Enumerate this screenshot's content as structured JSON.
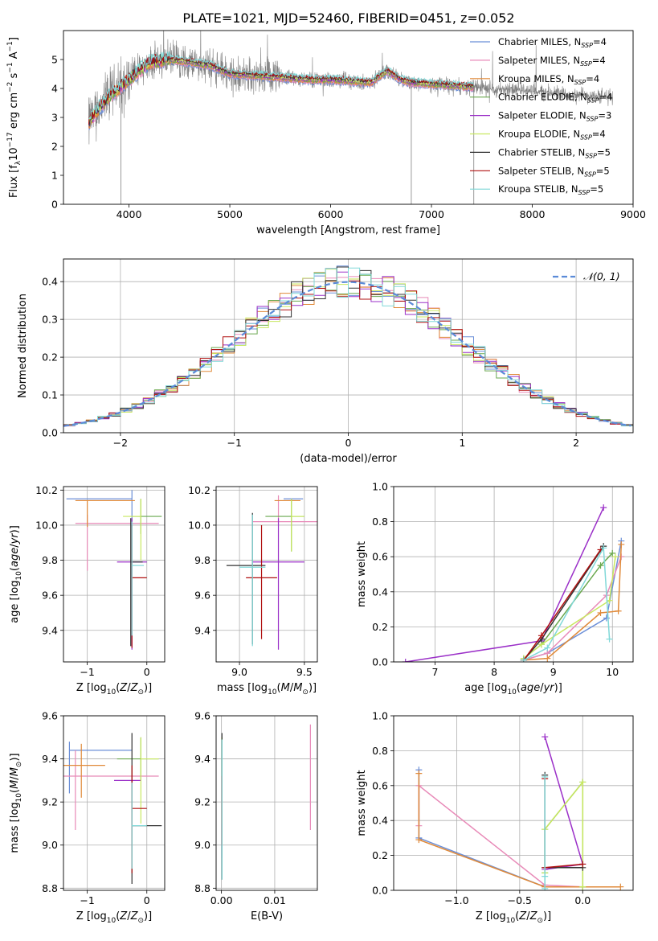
{
  "figure": {
    "title": "PLATE=1021, MJD=52460, FIBERID=0451, z=0.052"
  },
  "colors": {
    "Chabrier MILES": "#6b8fd8",
    "Salpeter MILES": "#e88ab8",
    "Kroupa MILES": "#e08a3a",
    "Chabrier ELODIE": "#6aa84f",
    "Salpeter ELODIE": "#9b30c8",
    "Kroupa ELODIE": "#c8e860",
    "Chabrier STELIB": "#333333",
    "Salpeter STELIB": "#b01010",
    "Kroupa STELIB": "#80d8d8",
    "observed": "#808080",
    "normal": "#5b8bd8"
  },
  "chart_data": [
    {
      "id": "spectrum",
      "type": "line",
      "xlabel": "wavelength [Angstrom, rest frame]",
      "ylabel": "Flux [f_λ 10^-17 erg cm^-2 s^-1 A^-1]",
      "xlim": [
        3350,
        9000
      ],
      "ylim": [
        0,
        6
      ],
      "xticks": [
        4000,
        5000,
        6000,
        7000,
        8000,
        9000
      ],
      "yticks": [
        0,
        1,
        2,
        3,
        4,
        5
      ],
      "legend_position": "top-right",
      "legend": [
        {
          "series": "Chabrier MILES",
          "text": "Chabrier MILES, N",
          "sub": "SSP",
          "tail": "=4"
        },
        {
          "series": "Salpeter MILES",
          "text": "Salpeter MILES, N",
          "sub": "SSP",
          "tail": "=4"
        },
        {
          "series": "Kroupa MILES",
          "text": "Kroupa MILES, N",
          "sub": "SSP",
          "tail": "=4"
        },
        {
          "series": "Chabrier ELODIE",
          "text": "Chabrier ELODIE, N",
          "sub": "SSP",
          "tail": "=4"
        },
        {
          "series": "Salpeter ELODIE",
          "text": "Salpeter ELODIE, N",
          "sub": "SSP",
          "tail": "=3"
        },
        {
          "series": "Kroupa ELODIE",
          "text": "Kroupa ELODIE, N",
          "sub": "SSP",
          "tail": "=4"
        },
        {
          "series": "Chabrier STELIB",
          "text": "Chabrier STELIB, N",
          "sub": "SSP",
          "tail": "=5"
        },
        {
          "series": "Salpeter STELIB",
          "text": "Salpeter STELIB, N",
          "sub": "SSP",
          "tail": "=5"
        },
        {
          "series": "Kroupa STELIB",
          "text": "Kroupa STELIB, N",
          "sub": "SSP",
          "tail": "=5"
        }
      ],
      "continuum": {
        "x": [
          3600,
          3700,
          3800,
          3900,
          4000,
          4100,
          4200,
          4400,
          4600,
          4800,
          5000,
          5200,
          5400,
          5600,
          5800,
          6000,
          6200,
          6400,
          6560,
          6700,
          6800,
          7000,
          7200,
          7400,
          7600,
          7800,
          8000,
          8200,
          8400,
          8600,
          8800
        ],
        "y": [
          2.8,
          3.3,
          3.7,
          4.0,
          4.3,
          4.6,
          4.9,
          5.0,
          4.9,
          4.8,
          4.5,
          4.45,
          4.4,
          4.35,
          4.3,
          4.3,
          4.25,
          4.2,
          4.6,
          4.3,
          4.2,
          4.15,
          4.1,
          4.05,
          4.0,
          3.95,
          3.9,
          3.85,
          3.8,
          3.75,
          3.7
        ]
      },
      "models_end_x": 7420
    },
    {
      "id": "residuals",
      "type": "histogram",
      "xlabel": "(data-model)/error",
      "ylabel": "Normed distribution",
      "xlim": [
        -2.5,
        2.5
      ],
      "ylim": [
        0,
        0.46
      ],
      "xticks": [
        -2,
        -1,
        0,
        1,
        2
      ],
      "yticks": [
        0,
        0.1,
        0.2,
        0.3,
        0.4
      ],
      "grid": true,
      "bin_width": 0.1,
      "bin_start": -2.5,
      "reference_curve": {
        "label": "𝒩(0, 1)",
        "mean": 0,
        "sigma": 1,
        "style": "dashed"
      },
      "legend_position": "top-right"
    },
    {
      "id": "age-vs-Z",
      "type": "errorbar",
      "xlabel": "Z [log10(Z/Z⊙)]",
      "ylabel": "age  [log10(age/yr)]",
      "xlim": [
        -1.4,
        0.3
      ],
      "ylim": [
        9.22,
        10.22
      ],
      "xticks": [
        -1,
        0
      ],
      "yticks": [
        9.4,
        9.6,
        9.8,
        10.0,
        10.2
      ],
      "grid": true,
      "points": [
        {
          "series": "Chabrier MILES",
          "x": -0.25,
          "y": 10.15,
          "xerr": [
            1.1,
            0.0
          ],
          "yerr": [
            0.17,
            0.05
          ]
        },
        {
          "series": "Salpeter MILES",
          "x": -1.0,
          "y": 10.01,
          "xerr": [
            0.2,
            1.2
          ],
          "yerr": [
            0.27,
            0.05
          ]
        },
        {
          "series": "Kroupa MILES",
          "x": -1.0,
          "y": 10.14,
          "xerr": [
            0.2,
            0.8
          ],
          "yerr": [
            0.15,
            0.0
          ]
        },
        {
          "series": "Chabrier ELODIE",
          "x": -0.1,
          "y": 10.05,
          "xerr": [
            0.15,
            0.35
          ],
          "yerr": [
            0.1,
            0.1
          ]
        },
        {
          "series": "Salpeter ELODIE",
          "x": -0.25,
          "y": 9.79,
          "xerr": [
            0.25,
            0.25
          ],
          "yerr": [
            0.5,
            0.25
          ]
        },
        {
          "series": "Kroupa ELODIE",
          "x": -0.1,
          "y": 10.05,
          "xerr": [
            0.3,
            0.0
          ],
          "yerr": [
            0.25,
            0.1
          ]
        },
        {
          "series": "Chabrier STELIB",
          "x": -0.27,
          "y": 9.79,
          "xerr": [
            0.0,
            0.2
          ],
          "yerr": [
            0.48,
            0.25
          ]
        },
        {
          "series": "Salpeter STELIB",
          "x": -0.25,
          "y": 9.7,
          "xerr": [
            0.0,
            0.25
          ],
          "yerr": [
            0.4,
            0.3
          ]
        },
        {
          "series": "Kroupa STELIB",
          "x": -0.25,
          "y": 9.77,
          "xerr": [
            0.0,
            0.2
          ],
          "yerr": [
            0.4,
            0.25
          ]
        }
      ]
    },
    {
      "id": "age-vs-mass",
      "type": "errorbar",
      "xlabel": "mass [log10(M/M⊙)]",
      "ylabel": "",
      "xlim": [
        8.82,
        9.6
      ],
      "ylim": [
        9.22,
        10.22
      ],
      "xticks": [
        9.0,
        9.5
      ],
      "yticks": [
        9.4,
        9.6,
        9.8,
        10.0,
        10.2
      ],
      "grid": true,
      "points": [
        {
          "series": "Chabrier MILES",
          "x": 9.44,
          "y": 10.15,
          "xerr": [
            0.1,
            0.05
          ],
          "yerr": [
            0.0,
            0.0
          ]
        },
        {
          "series": "Salpeter MILES",
          "x": 9.3,
          "y": 10.02,
          "xerr": [
            0.2,
            0.3
          ],
          "yerr": [
            0.0,
            0.15
          ]
        },
        {
          "series": "Kroupa MILES",
          "x": 9.37,
          "y": 10.14,
          "xerr": [
            0.1,
            0.1
          ],
          "yerr": [
            0.0,
            0.0
          ]
        },
        {
          "series": "Chabrier ELODIE",
          "x": 9.4,
          "y": 10.05,
          "xerr": [
            0.2,
            0.1
          ],
          "yerr": [
            0.2,
            0.1
          ]
        },
        {
          "series": "Salpeter ELODIE",
          "x": 9.3,
          "y": 9.79,
          "xerr": [
            0.2,
            0.2
          ],
          "yerr": [
            0.5,
            0.25
          ]
        },
        {
          "series": "Kroupa ELODIE",
          "x": 9.4,
          "y": 10.05,
          "xerr": [
            0.0,
            0.1
          ],
          "yerr": [
            0.2,
            0.1
          ]
        },
        {
          "series": "Chabrier STELIB",
          "x": 9.1,
          "y": 9.77,
          "xerr": [
            0.2,
            0.1
          ],
          "yerr": [
            0.45,
            0.3
          ]
        },
        {
          "series": "Salpeter STELIB",
          "x": 9.17,
          "y": 9.7,
          "xerr": [
            0.12,
            0.12
          ],
          "yerr": [
            0.35,
            0.3
          ]
        },
        {
          "series": "Kroupa STELIB",
          "x": 9.1,
          "y": 9.76,
          "xerr": [
            0.1,
            0.1
          ],
          "yerr": [
            0.45,
            0.3
          ]
        }
      ]
    },
    {
      "id": "weight-vs-age",
      "type": "line",
      "xlabel": "age  [log10(age/yr)]",
      "ylabel": "mass weight",
      "xlim": [
        6.3,
        10.35
      ],
      "ylim": [
        0,
        1.0
      ],
      "xticks": [
        7,
        8,
        9,
        10
      ],
      "yticks": [
        0.0,
        0.2,
        0.4,
        0.6,
        0.8,
        1.0
      ],
      "grid": true,
      "series": [
        {
          "name": "Chabrier MILES",
          "x": [
            8.5,
            8.9,
            9.9,
            10.15
          ],
          "y": [
            0.01,
            0.05,
            0.25,
            0.69
          ]
        },
        {
          "name": "Salpeter MILES",
          "x": [
            8.5,
            8.9,
            9.9,
            10.15
          ],
          "y": [
            0.01,
            0.05,
            0.38,
            0.6
          ]
        },
        {
          "name": "Kroupa MILES",
          "x": [
            8.5,
            8.9,
            9.8,
            10.1,
            10.15
          ],
          "y": [
            0.01,
            0.02,
            0.28,
            0.29,
            0.67
          ]
        },
        {
          "name": "Chabrier ELODIE",
          "x": [
            8.5,
            8.8,
            9.8,
            10.0
          ],
          "y": [
            0.02,
            0.1,
            0.55,
            0.62
          ]
        },
        {
          "name": "Salpeter ELODIE",
          "x": [
            6.5,
            8.8,
            9.85
          ],
          "y": [
            0.0,
            0.12,
            0.88
          ]
        },
        {
          "name": "Kroupa ELODIE",
          "x": [
            8.5,
            8.8,
            9.95,
            10.05
          ],
          "y": [
            0.02,
            0.1,
            0.35,
            0.6
          ]
        },
        {
          "name": "Chabrier STELIB",
          "x": [
            8.5,
            8.8,
            9.85
          ],
          "y": [
            0.01,
            0.13,
            0.66
          ]
        },
        {
          "name": "Salpeter STELIB",
          "x": [
            8.5,
            8.8,
            9.8
          ],
          "y": [
            0.01,
            0.15,
            0.64
          ]
        },
        {
          "name": "Kroupa STELIB",
          "x": [
            8.5,
            8.9,
            9.85,
            9.95
          ],
          "y": [
            0.01,
            0.08,
            0.65,
            0.13
          ]
        }
      ]
    },
    {
      "id": "mass-vs-Z",
      "type": "errorbar",
      "xlabel": "Z [log10(Z/Z⊙)]",
      "ylabel": "mass [log10(M/M⊙)]",
      "xlim": [
        -1.4,
        0.3
      ],
      "ylim": [
        8.79,
        9.6
      ],
      "xticks": [
        -1,
        0
      ],
      "yticks": [
        8.8,
        9.0,
        9.2,
        9.4,
        9.6
      ],
      "grid": true,
      "points": [
        {
          "series": "Chabrier MILES",
          "x": -1.3,
          "y": 9.44,
          "xerr": [
            0.0,
            1.05
          ],
          "yerr": [
            0.2,
            0.04
          ]
        },
        {
          "series": "Salpeter MILES",
          "x": -1.2,
          "y": 9.32,
          "xerr": [
            0.2,
            1.4
          ],
          "yerr": [
            0.25,
            0.12
          ]
        },
        {
          "series": "Kroupa MILES",
          "x": -1.1,
          "y": 9.37,
          "xerr": [
            0.3,
            0.4
          ],
          "yerr": [
            0.15,
            0.1
          ]
        },
        {
          "series": "Chabrier ELODIE",
          "x": -0.1,
          "y": 9.4,
          "xerr": [
            0.4,
            0.3
          ],
          "yerr": [
            0.1,
            0.1
          ]
        },
        {
          "series": "Salpeter ELODIE",
          "x": -0.25,
          "y": 9.3,
          "xerr": [
            0.3,
            0.15
          ],
          "yerr": [
            0.15,
            0.0
          ]
        },
        {
          "series": "Kroupa ELODIE",
          "x": -0.1,
          "y": 9.4,
          "xerr": [
            0.0,
            0.3
          ],
          "yerr": [
            0.3,
            0.1
          ]
        },
        {
          "series": "Chabrier STELIB",
          "x": -0.25,
          "y": 9.09,
          "xerr": [
            0.0,
            0.5
          ],
          "yerr": [
            0.27,
            0.43
          ]
        },
        {
          "series": "Salpeter STELIB",
          "x": -0.25,
          "y": 9.17,
          "xerr": [
            0.0,
            0.25
          ],
          "yerr": [
            0.3,
            0.2
          ]
        },
        {
          "series": "Kroupa STELIB",
          "x": -0.25,
          "y": 9.09,
          "xerr": [
            0.0,
            0.25
          ],
          "yerr": [
            0.2,
            0.2
          ]
        }
      ]
    },
    {
      "id": "mass-vs-EBV",
      "type": "errorbar",
      "xlabel": "E(B-V)",
      "ylabel": "",
      "xlim": [
        -0.001,
        0.018
      ],
      "ylim": [
        8.79,
        9.6
      ],
      "xticks": [
        0.0,
        0.01
      ],
      "yticks": [
        8.8,
        9.0,
        9.2,
        9.4,
        9.6
      ],
      "grid": true,
      "points": [
        {
          "series": "Chabrier MILES",
          "x": 0.0001,
          "y": 9.44,
          "xerr": [
            0,
            0
          ],
          "yerr": [
            0.5,
            0.06
          ]
        },
        {
          "series": "Salpeter MILES",
          "x": 0.0167,
          "y": 9.32,
          "xerr": [
            0,
            0
          ],
          "yerr": [
            0.25,
            0.24
          ]
        },
        {
          "series": "Kroupa MILES",
          "x": 0.0001,
          "y": 9.37,
          "xerr": [
            0,
            0
          ],
          "yerr": [
            0.1,
            0.1
          ]
        },
        {
          "series": "Chabrier ELODIE",
          "x": 0.0001,
          "y": 9.4,
          "xerr": [
            0,
            0
          ],
          "yerr": [
            0.1,
            0.1
          ]
        },
        {
          "series": "Salpeter ELODIE",
          "x": 0.0001,
          "y": 9.3,
          "xerr": [
            0,
            0
          ],
          "yerr": [
            0.1,
            0.0
          ]
        },
        {
          "series": "Kroupa ELODIE",
          "x": 0.0001,
          "y": 9.4,
          "xerr": [
            0,
            0
          ],
          "yerr": [
            0.3,
            0.1
          ]
        },
        {
          "series": "Chabrier STELIB",
          "x": 0.0001,
          "y": 9.09,
          "xerr": [
            0,
            0
          ],
          "yerr": [
            0.25,
            0.43
          ]
        },
        {
          "series": "Salpeter STELIB",
          "x": 0.0001,
          "y": 9.2,
          "xerr": [
            0,
            0
          ],
          "yerr": [
            0.2,
            0.12
          ]
        },
        {
          "series": "Kroupa STELIB",
          "x": 0.0001,
          "y": 9.09,
          "xerr": [
            0,
            0
          ],
          "yerr": [
            0.25,
            0.4
          ]
        }
      ]
    },
    {
      "id": "weight-vs-Z",
      "type": "line",
      "xlabel": "Z [log10(Z/Z⊙)]",
      "ylabel": "mass weight",
      "xlim": [
        -1.5,
        0.4
      ],
      "ylim": [
        0,
        1.0
      ],
      "xticks": [
        -1.0,
        -0.5,
        0.0
      ],
      "yticks": [
        0.0,
        0.2,
        0.4,
        0.6,
        0.8,
        1.0
      ],
      "grid": true,
      "series": [
        {
          "name": "Chabrier MILES",
          "x": [
            -1.3,
            -1.3,
            -0.3,
            0.0
          ],
          "y": [
            0.69,
            0.3,
            0.02,
            0.02
          ]
        },
        {
          "name": "Salpeter MILES",
          "x": [
            -1.3,
            -1.3,
            -0.3,
            0.0
          ],
          "y": [
            0.37,
            0.6,
            0.03,
            0.02
          ]
        },
        {
          "name": "Kroupa MILES",
          "x": [
            -1.3,
            -1.3,
            -0.3,
            0.3
          ],
          "y": [
            0.67,
            0.29,
            0.02,
            0.02
          ]
        },
        {
          "name": "Chabrier ELODIE",
          "x": [
            0.0,
            0.0,
            -0.3,
            -0.3
          ],
          "y": [
            0.02,
            0.62,
            0.35,
            0.1
          ]
        },
        {
          "name": "Salpeter ELODIE",
          "x": [
            -0.3,
            0.0,
            -0.3
          ],
          "y": [
            0.88,
            0.15,
            0.12
          ]
        },
        {
          "name": "Kroupa ELODIE",
          "x": [
            0.0,
            0.0,
            -0.3,
            -0.3
          ],
          "y": [
            0.02,
            0.62,
            0.35,
            0.1
          ]
        },
        {
          "name": "Chabrier STELIB",
          "x": [
            -0.3,
            -0.3,
            0.0
          ],
          "y": [
            0.66,
            0.13,
            0.13
          ]
        },
        {
          "name": "Salpeter STELIB",
          "x": [
            -0.3,
            -0.3,
            0.0
          ],
          "y": [
            0.64,
            0.13,
            0.15
          ]
        },
        {
          "name": "Kroupa STELIB",
          "x": [
            -0.3,
            -0.3,
            -0.3
          ],
          "y": [
            0.65,
            0.08,
            0.01
          ]
        }
      ]
    }
  ]
}
